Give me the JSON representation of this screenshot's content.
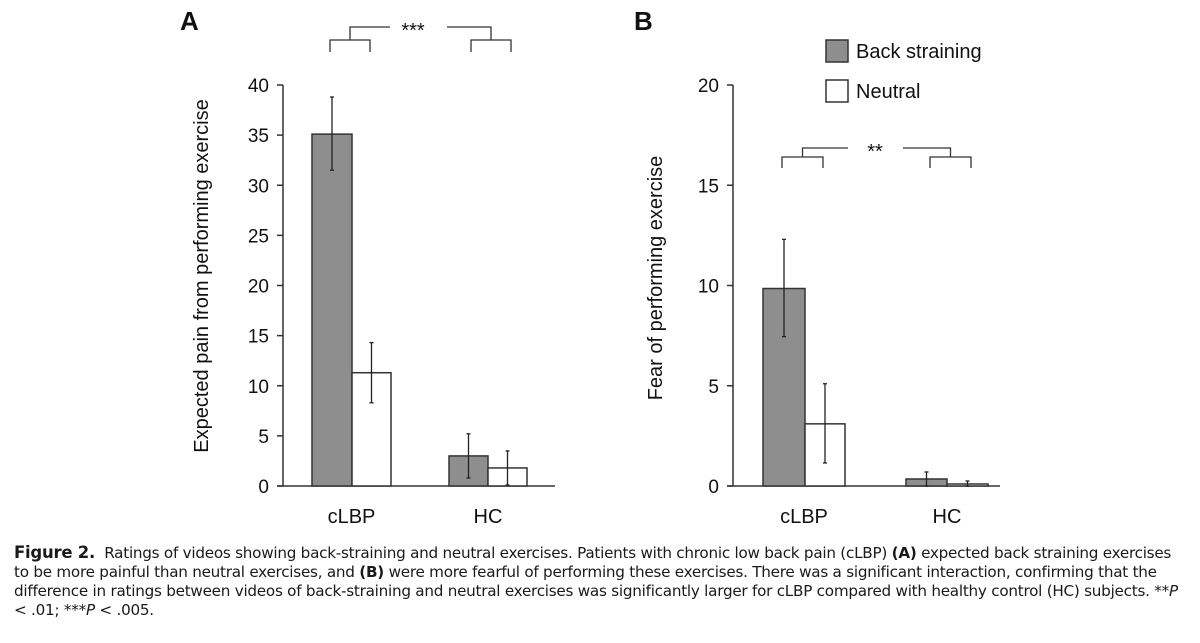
{
  "chart_data": [
    {
      "panel": "A",
      "type": "bar",
      "categories": [
        "cLBP",
        "HC"
      ],
      "series": [
        {
          "name": "Back straining",
          "values": [
            35.1,
            3.0
          ],
          "error_upper": [
            38.8,
            5.2
          ],
          "error_lower": [
            31.5,
            0.8
          ],
          "color": "#8e8e8e"
        },
        {
          "name": "Neutral",
          "values": [
            11.3,
            1.8
          ],
          "error_upper": [
            14.3,
            3.5
          ],
          "error_lower": [
            8.3,
            0.1
          ],
          "color": "#ffffff"
        }
      ],
      "title": "",
      "xlabel": "",
      "ylabel": "Expected pain from performing exercise",
      "ylim": [
        0,
        40
      ],
      "yticks": [
        0,
        5,
        10,
        15,
        20,
        25,
        30,
        35,
        40
      ],
      "grid": false,
      "significance": {
        "label": "***",
        "comparison": "interaction cLBP vs HC"
      }
    },
    {
      "panel": "B",
      "type": "bar",
      "categories": [
        "cLBP",
        "HC"
      ],
      "series": [
        {
          "name": "Back straining",
          "values": [
            9.85,
            0.35
          ],
          "error_upper": [
            12.3,
            0.7
          ],
          "error_lower": [
            7.45,
            0.0
          ],
          "color": "#8e8e8e"
        },
        {
          "name": "Neutral",
          "values": [
            3.1,
            0.1
          ],
          "error_upper": [
            5.1,
            0.25
          ],
          "error_lower": [
            1.15,
            0.0
          ],
          "color": "#ffffff"
        }
      ],
      "title": "",
      "xlabel": "",
      "ylabel": "Fear of performing exercise",
      "ylim": [
        0,
        20
      ],
      "yticks": [
        0,
        5,
        10,
        15,
        20
      ],
      "grid": false,
      "legend": {
        "position": "top-right",
        "entries": [
          "Back straining",
          "Neutral"
        ]
      },
      "significance": {
        "label": "**",
        "comparison": "interaction cLBP vs HC"
      }
    }
  ],
  "caption": {
    "label": "Figure 2.",
    "text_1": "Ratings of videos showing back-straining and neutral exercises. Patients with chronic low back pain (cLBP)",
    "panel_a": "(A)",
    "text_2": "expected back straining exercises to be more painful than neutral exercises, and",
    "panel_b": "(B)",
    "text_3": "were more fearful of performing these exercises. There was a significant interaction, confirming that the difference in ratings between videos of back-straining and neutral exercises was significantly larger for cLBP compared with healthy control (HC) subjects.",
    "p1_stars": "**",
    "p1_sym": "P",
    "p1_rest": " < .01; ",
    "p2_stars": "***",
    "p2_sym": "P",
    "p2_rest": " < .005."
  }
}
